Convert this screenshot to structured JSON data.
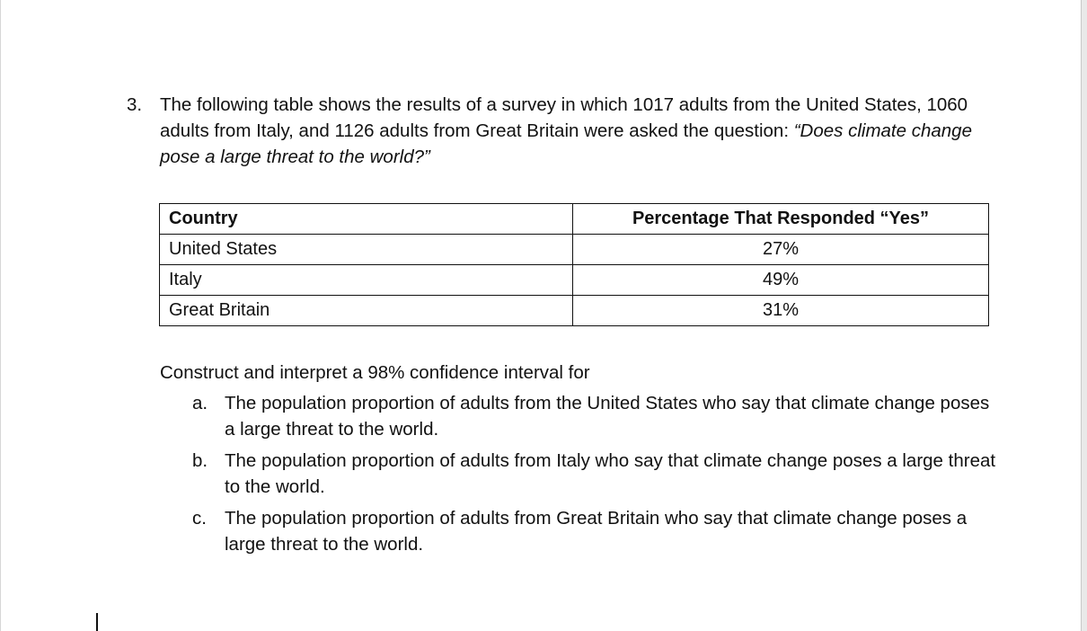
{
  "question": {
    "number": "3.",
    "text_intro": "The following table shows the results of a survey in which 1017 adults from the United States, 1060 adults from Italy, and 1126 adults from Great Britain were asked the question: ",
    "text_quote": "“Does climate change pose a large threat to the world?”"
  },
  "table": {
    "headers": [
      "Country",
      "Percentage That Responded “Yes”"
    ],
    "rows": [
      {
        "country": "United States",
        "percent": "27%"
      },
      {
        "country": "Italy",
        "percent": "49%"
      },
      {
        "country": "Great Britain",
        "percent": "31%"
      }
    ]
  },
  "instruction": "Construct and interpret a 98% confidence interval for",
  "parts": [
    {
      "letter": "a.",
      "text": "The population proportion of adults from the United States who say that climate change poses a large threat to the world."
    },
    {
      "letter": "b.",
      "text": "The population proportion of adults from Italy who say that climate change poses a large threat to the world."
    },
    {
      "letter": "c.",
      "text": "The population proportion of adults from Great Britain who say that climate change poses a large threat to the world."
    }
  ]
}
